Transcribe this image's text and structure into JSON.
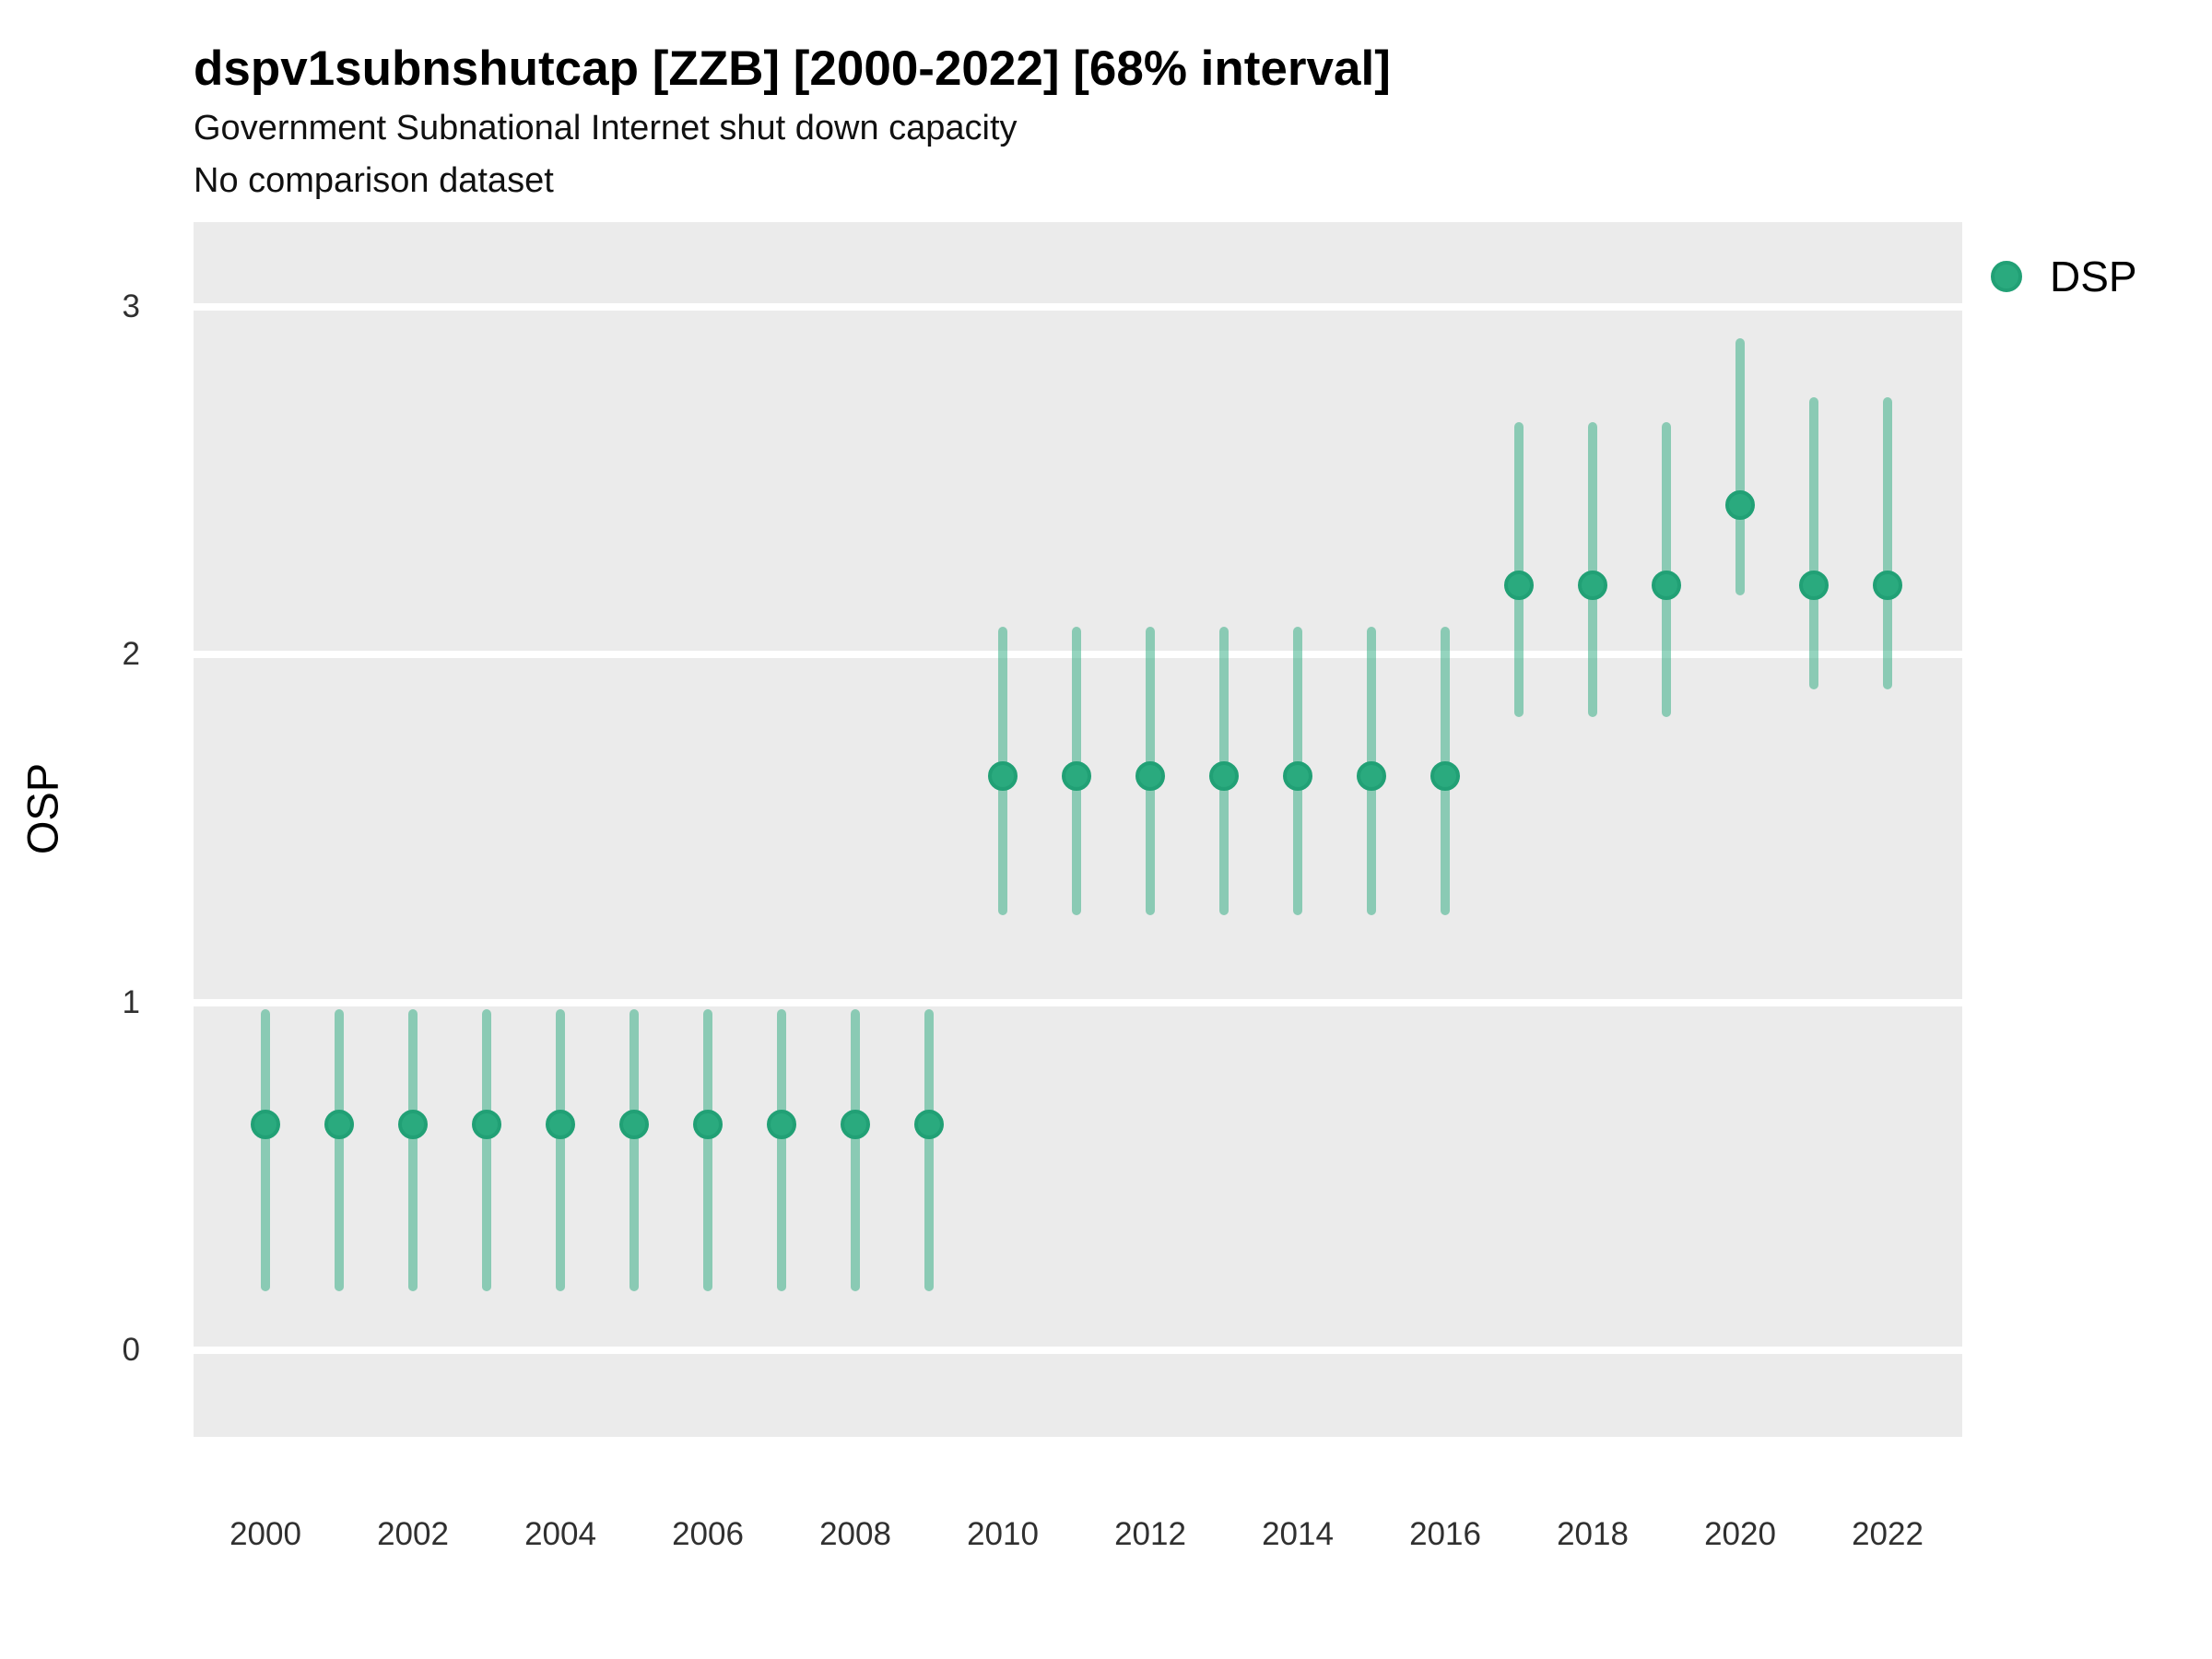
{
  "header": {
    "title": "dspv1subnshutcap [ZZB] [2000-2022] [68% interval]",
    "subtitle": "Government Subnational Internet shut down capacity",
    "comparison_note": "No comparison dataset"
  },
  "legend": {
    "series_label": "DSP"
  },
  "colors": {
    "point_fill": "#2aaa7e",
    "point_stroke": "#21a075",
    "interval_line": "rgba(42,170,126,0.5)",
    "panel_background": "#ebebeb",
    "gridline": "#ffffff",
    "tick_text": "#303030",
    "title_text": "#000000"
  },
  "chart_data": {
    "type": "scatter",
    "title": "dspv1subnshutcap [ZZB] [2000-2022] [68% interval]",
    "subtitle": "Government Subnational Internet shut down capacity",
    "note": "No comparison dataset",
    "xlabel": "",
    "ylabel": "OSP",
    "interval_label": "68% interval",
    "legend_position": "right",
    "grid": true,
    "xlim": [
      1999,
      2023
    ],
    "ylim": [
      -0.25,
      3.25
    ],
    "x_ticks": [
      2000,
      2002,
      2004,
      2006,
      2008,
      2010,
      2012,
      2014,
      2016,
      2018,
      2020,
      2022
    ],
    "y_ticks": [
      0,
      1,
      2,
      3
    ],
    "series": [
      {
        "name": "DSP",
        "points": [
          {
            "year": 2000,
            "est": 0.65,
            "lo": 0.17,
            "hi": 0.98
          },
          {
            "year": 2001,
            "est": 0.65,
            "lo": 0.17,
            "hi": 0.98
          },
          {
            "year": 2002,
            "est": 0.65,
            "lo": 0.17,
            "hi": 0.98
          },
          {
            "year": 2003,
            "est": 0.65,
            "lo": 0.17,
            "hi": 0.98
          },
          {
            "year": 2004,
            "est": 0.65,
            "lo": 0.17,
            "hi": 0.98
          },
          {
            "year": 2005,
            "est": 0.65,
            "lo": 0.17,
            "hi": 0.98
          },
          {
            "year": 2006,
            "est": 0.65,
            "lo": 0.17,
            "hi": 0.98
          },
          {
            "year": 2007,
            "est": 0.65,
            "lo": 0.17,
            "hi": 0.98
          },
          {
            "year": 2008,
            "est": 0.65,
            "lo": 0.17,
            "hi": 0.98
          },
          {
            "year": 2009,
            "est": 0.65,
            "lo": 0.17,
            "hi": 0.98
          },
          {
            "year": 2010,
            "est": 1.65,
            "lo": 1.25,
            "hi": 2.08
          },
          {
            "year": 2011,
            "est": 1.65,
            "lo": 1.25,
            "hi": 2.08
          },
          {
            "year": 2012,
            "est": 1.65,
            "lo": 1.25,
            "hi": 2.08
          },
          {
            "year": 2013,
            "est": 1.65,
            "lo": 1.25,
            "hi": 2.08
          },
          {
            "year": 2014,
            "est": 1.65,
            "lo": 1.25,
            "hi": 2.08
          },
          {
            "year": 2015,
            "est": 1.65,
            "lo": 1.25,
            "hi": 2.08
          },
          {
            "year": 2016,
            "est": 1.65,
            "lo": 1.25,
            "hi": 2.08
          },
          {
            "year": 2017,
            "est": 2.2,
            "lo": 1.82,
            "hi": 2.67
          },
          {
            "year": 2018,
            "est": 2.2,
            "lo": 1.82,
            "hi": 2.67
          },
          {
            "year": 2019,
            "est": 2.2,
            "lo": 1.82,
            "hi": 2.67
          },
          {
            "year": 2020,
            "est": 2.43,
            "lo": 2.17,
            "hi": 2.91
          },
          {
            "year": 2021,
            "est": 2.2,
            "lo": 1.9,
            "hi": 2.74
          },
          {
            "year": 2022,
            "est": 2.2,
            "lo": 1.9,
            "hi": 2.74
          }
        ]
      }
    ]
  }
}
